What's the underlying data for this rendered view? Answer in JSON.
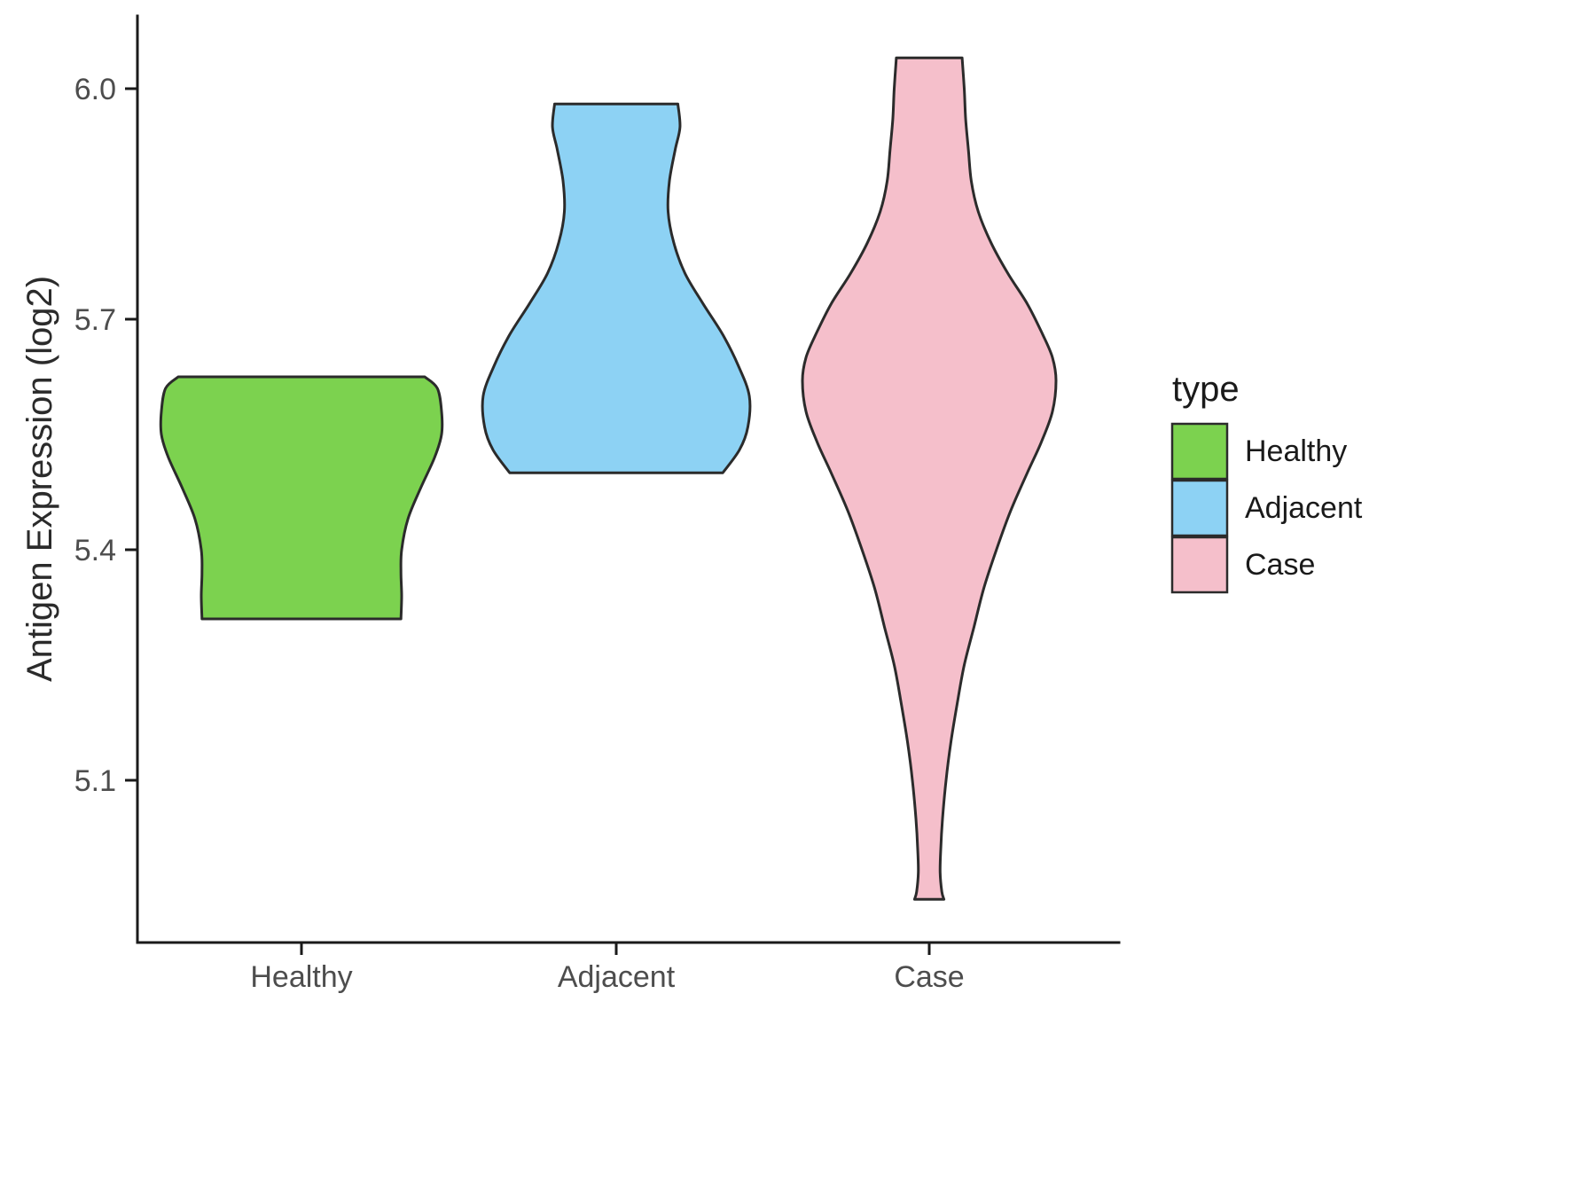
{
  "chart_data": {
    "type": "violin",
    "title": "",
    "xlabel": "",
    "ylabel": "Antigen Expression (log2)",
    "x_categories": [
      "Healthy",
      "Adjacent",
      "Case"
    ],
    "y_ticks": [
      {
        "value": 6.0,
        "label": "6.0"
      },
      {
        "value": 5.7,
        "label": "5.7"
      },
      {
        "value": 5.4,
        "label": "5.4"
      },
      {
        "value": 5.1,
        "label": "5.1"
      }
    ],
    "y_range_shown": [
      4.9,
      6.08
    ],
    "grid": false,
    "legend": {
      "title": "type",
      "position": "right",
      "entries": [
        {
          "label": "Healthy",
          "color": "#7CD24F"
        },
        {
          "label": "Adjacent",
          "color": "#8DD2F4"
        },
        {
          "label": "Case",
          "color": "#F5BFCB"
        }
      ]
    },
    "outline_color": "#2B2B2B",
    "axis_color": "#1A1A1A",
    "text_color": "#4D4D4D",
    "profile_unit": "halfwidth as fraction of max violin halfwidth, per y value",
    "series": [
      {
        "name": "Healthy",
        "color": "#7CD24F",
        "y_min": 5.31,
        "y_max": 5.625,
        "profile": [
          [
            5.625,
            0.88
          ],
          [
            5.61,
            0.97
          ],
          [
            5.58,
            1.0
          ],
          [
            5.55,
            1.0
          ],
          [
            5.52,
            0.95
          ],
          [
            5.48,
            0.85
          ],
          [
            5.44,
            0.76
          ],
          [
            5.4,
            0.715
          ],
          [
            5.37,
            0.71
          ],
          [
            5.34,
            0.715
          ],
          [
            5.31,
            0.71
          ]
        ]
      },
      {
        "name": "Adjacent",
        "color": "#8DD2F4",
        "y_min": 5.5,
        "y_max": 5.98,
        "profile": [
          [
            5.98,
            0.44
          ],
          [
            5.95,
            0.455
          ],
          [
            5.92,
            0.42
          ],
          [
            5.88,
            0.38
          ],
          [
            5.84,
            0.37
          ],
          [
            5.8,
            0.41
          ],
          [
            5.76,
            0.49
          ],
          [
            5.72,
            0.62
          ],
          [
            5.68,
            0.76
          ],
          [
            5.64,
            0.87
          ],
          [
            5.6,
            0.95
          ],
          [
            5.56,
            0.94
          ],
          [
            5.53,
            0.88
          ],
          [
            5.5,
            0.76
          ]
        ]
      },
      {
        "name": "Case",
        "color": "#F5BFCB",
        "y_min": 4.945,
        "y_max": 6.04,
        "profile": [
          [
            6.04,
            0.235
          ],
          [
            6.0,
            0.25
          ],
          [
            5.96,
            0.26
          ],
          [
            5.92,
            0.28
          ],
          [
            5.88,
            0.3
          ],
          [
            5.84,
            0.35
          ],
          [
            5.8,
            0.44
          ],
          [
            5.76,
            0.56
          ],
          [
            5.72,
            0.7
          ],
          [
            5.68,
            0.81
          ],
          [
            5.65,
            0.88
          ],
          [
            5.62,
            0.905
          ],
          [
            5.58,
            0.88
          ],
          [
            5.54,
            0.8
          ],
          [
            5.5,
            0.7
          ],
          [
            5.45,
            0.58
          ],
          [
            5.4,
            0.48
          ],
          [
            5.35,
            0.39
          ],
          [
            5.3,
            0.32
          ],
          [
            5.25,
            0.25
          ],
          [
            5.2,
            0.2
          ],
          [
            5.15,
            0.155
          ],
          [
            5.1,
            0.12
          ],
          [
            5.05,
            0.095
          ],
          [
            5.01,
            0.082
          ],
          [
            4.98,
            0.078
          ],
          [
            4.955,
            0.09
          ],
          [
            4.945,
            0.105
          ]
        ]
      }
    ]
  }
}
